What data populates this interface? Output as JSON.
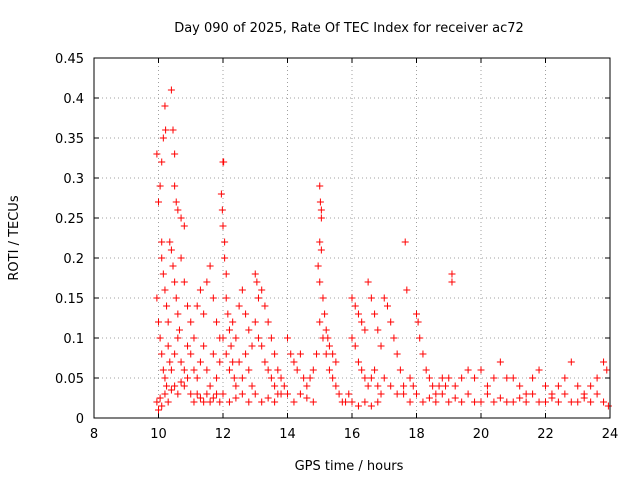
{
  "chart_data": {
    "type": "scatter",
    "title": "Day 090 of 2025, Rate Of TEC Index for receiver ac72",
    "xlabel": "GPS time / hours",
    "ylabel": "ROTI / TECUs",
    "xlim": [
      8,
      24
    ],
    "ylim": [
      0,
      0.45
    ],
    "xticks": [
      8,
      10,
      12,
      14,
      16,
      18,
      20,
      22,
      24
    ],
    "xtick_labels": [
      "8",
      "10",
      "12",
      "14",
      "16",
      "18",
      "20",
      "22",
      "24"
    ],
    "yticks": [
      0,
      0.05,
      0.1,
      0.15,
      0.2,
      0.25,
      0.3,
      0.35,
      0.4,
      0.45
    ],
    "ytick_labels": [
      "0",
      "0.05",
      "0.1",
      "0.15",
      "0.2",
      "0.25",
      "0.3",
      "0.35",
      "0.4",
      "0.45"
    ],
    "grid": true,
    "marker": "+",
    "color": "#ff0000",
    "series": [
      {
        "points": [
          [
            9.95,
            0.33
          ],
          [
            10.0,
            0.27
          ],
          [
            10.05,
            0.29
          ],
          [
            10.1,
            0.32
          ],
          [
            10.15,
            0.35
          ],
          [
            10.2,
            0.39
          ],
          [
            10.22,
            0.36
          ],
          [
            10.4,
            0.41
          ],
          [
            10.45,
            0.36
          ],
          [
            10.5,
            0.33
          ],
          [
            10.5,
            0.29
          ],
          [
            10.55,
            0.27
          ],
          [
            10.6,
            0.26
          ],
          [
            10.7,
            0.25
          ],
          [
            10.8,
            0.24
          ],
          [
            10.1,
            0.22
          ],
          [
            10.1,
            0.2
          ],
          [
            10.15,
            0.18
          ],
          [
            10.2,
            0.16
          ],
          [
            10.25,
            0.14
          ],
          [
            10.3,
            0.12
          ],
          [
            10.35,
            0.22
          ],
          [
            10.4,
            0.21
          ],
          [
            10.45,
            0.19
          ],
          [
            10.5,
            0.17
          ],
          [
            10.55,
            0.15
          ],
          [
            10.6,
            0.13
          ],
          [
            10.65,
            0.11
          ],
          [
            10.7,
            0.2
          ],
          [
            10.8,
            0.17
          ],
          [
            10.9,
            0.14
          ],
          [
            9.95,
            0.15
          ],
          [
            10.0,
            0.12
          ],
          [
            10.05,
            0.1
          ],
          [
            10.1,
            0.08
          ],
          [
            10.15,
            0.06
          ],
          [
            10.2,
            0.05
          ],
          [
            10.25,
            0.04
          ],
          [
            10.3,
            0.09
          ],
          [
            10.35,
            0.07
          ],
          [
            10.4,
            0.06
          ],
          [
            10.5,
            0.08
          ],
          [
            10.6,
            0.1
          ],
          [
            10.7,
            0.07
          ],
          [
            10.8,
            0.06
          ],
          [
            10.9,
            0.09
          ],
          [
            9.95,
            0.02
          ],
          [
            10.0,
            0.01
          ],
          [
            10.05,
            0.025
          ],
          [
            10.1,
            0.015
          ],
          [
            10.2,
            0.03
          ],
          [
            10.3,
            0.02
          ],
          [
            10.4,
            0.035
          ],
          [
            10.5,
            0.04
          ],
          [
            10.6,
            0.03
          ],
          [
            10.7,
            0.045
          ],
          [
            10.8,
            0.04
          ],
          [
            10.9,
            0.05
          ],
          [
            11.0,
            0.12
          ],
          [
            11.1,
            0.1
          ],
          [
            11.2,
            0.14
          ],
          [
            11.3,
            0.16
          ],
          [
            11.4,
            0.13
          ],
          [
            11.5,
            0.17
          ],
          [
            11.6,
            0.19
          ],
          [
            11.7,
            0.15
          ],
          [
            11.8,
            0.12
          ],
          [
            11.9,
            0.1
          ],
          [
            11.0,
            0.08
          ],
          [
            11.1,
            0.06
          ],
          [
            11.2,
            0.05
          ],
          [
            11.3,
            0.07
          ],
          [
            11.4,
            0.09
          ],
          [
            11.5,
            0.06
          ],
          [
            11.6,
            0.04
          ],
          [
            11.7,
            0.08
          ],
          [
            11.8,
            0.05
          ],
          [
            11.9,
            0.07
          ],
          [
            11.0,
            0.03
          ],
          [
            11.1,
            0.02
          ],
          [
            11.2,
            0.03
          ],
          [
            11.3,
            0.025
          ],
          [
            11.4,
            0.02
          ],
          [
            11.5,
            0.03
          ],
          [
            11.6,
            0.02
          ],
          [
            11.7,
            0.025
          ],
          [
            11.8,
            0.03
          ],
          [
            11.9,
            0.02
          ],
          [
            12.0,
            0.32
          ],
          [
            12.02,
            0.32
          ],
          [
            11.95,
            0.28
          ],
          [
            11.98,
            0.26
          ],
          [
            12.0,
            0.24
          ],
          [
            12.05,
            0.22
          ],
          [
            12.05,
            0.2
          ],
          [
            12.1,
            0.18
          ],
          [
            12.1,
            0.15
          ],
          [
            12.15,
            0.13
          ],
          [
            12.2,
            0.11
          ],
          [
            12.25,
            0.09
          ],
          [
            12.3,
            0.07
          ],
          [
            12.35,
            0.05
          ],
          [
            12.4,
            0.04
          ],
          [
            12.0,
            0.1
          ],
          [
            12.1,
            0.08
          ],
          [
            12.2,
            0.06
          ],
          [
            12.3,
            0.12
          ],
          [
            12.4,
            0.1
          ],
          [
            12.5,
            0.14
          ],
          [
            12.6,
            0.16
          ],
          [
            12.7,
            0.13
          ],
          [
            12.8,
            0.11
          ],
          [
            12.9,
            0.09
          ],
          [
            12.5,
            0.07
          ],
          [
            12.6,
            0.05
          ],
          [
            12.7,
            0.08
          ],
          [
            12.8,
            0.06
          ],
          [
            12.9,
            0.04
          ],
          [
            12.0,
            0.03
          ],
          [
            12.2,
            0.02
          ],
          [
            12.4,
            0.025
          ],
          [
            12.6,
            0.03
          ],
          [
            12.8,
            0.02
          ],
          [
            13.0,
            0.18
          ],
          [
            13.05,
            0.17
          ],
          [
            13.1,
            0.15
          ],
          [
            13.2,
            0.16
          ],
          [
            13.3,
            0.14
          ],
          [
            13.4,
            0.12
          ],
          [
            13.5,
            0.1
          ],
          [
            13.6,
            0.08
          ],
          [
            13.7,
            0.06
          ],
          [
            13.8,
            0.05
          ],
          [
            13.9,
            0.04
          ],
          [
            13.0,
            0.12
          ],
          [
            13.1,
            0.1
          ],
          [
            13.2,
            0.09
          ],
          [
            13.3,
            0.07
          ],
          [
            13.4,
            0.06
          ],
          [
            13.5,
            0.05
          ],
          [
            13.6,
            0.04
          ],
          [
            13.7,
            0.03
          ],
          [
            13.0,
            0.03
          ],
          [
            13.2,
            0.02
          ],
          [
            13.4,
            0.025
          ],
          [
            13.6,
            0.02
          ],
          [
            13.8,
            0.03
          ],
          [
            14.0,
            0.1
          ],
          [
            14.1,
            0.08
          ],
          [
            14.2,
            0.07
          ],
          [
            14.3,
            0.06
          ],
          [
            14.4,
            0.08
          ],
          [
            14.5,
            0.05
          ],
          [
            14.6,
            0.04
          ],
          [
            14.7,
            0.05
          ],
          [
            14.8,
            0.06
          ],
          [
            14.9,
            0.08
          ],
          [
            14.0,
            0.03
          ],
          [
            14.2,
            0.02
          ],
          [
            14.4,
            0.03
          ],
          [
            14.6,
            0.025
          ],
          [
            14.8,
            0.02
          ],
          [
            15.0,
            0.29
          ],
          [
            15.02,
            0.27
          ],
          [
            15.05,
            0.26
          ],
          [
            15.05,
            0.25
          ],
          [
            15.0,
            0.22
          ],
          [
            15.05,
            0.21
          ],
          [
            14.95,
            0.19
          ],
          [
            15.0,
            0.17
          ],
          [
            15.1,
            0.15
          ],
          [
            15.15,
            0.13
          ],
          [
            15.2,
            0.11
          ],
          [
            15.25,
            0.1
          ],
          [
            15.3,
            0.09
          ],
          [
            15.4,
            0.08
          ],
          [
            15.5,
            0.07
          ],
          [
            15.0,
            0.12
          ],
          [
            15.1,
            0.1
          ],
          [
            15.2,
            0.08
          ],
          [
            15.3,
            0.06
          ],
          [
            15.4,
            0.05
          ],
          [
            15.5,
            0.04
          ],
          [
            15.6,
            0.03
          ],
          [
            15.7,
            0.02
          ],
          [
            15.8,
            0.02
          ],
          [
            15.9,
            0.03
          ],
          [
            16.0,
            0.15
          ],
          [
            16.1,
            0.14
          ],
          [
            16.2,
            0.13
          ],
          [
            16.3,
            0.12
          ],
          [
            16.4,
            0.11
          ],
          [
            16.5,
            0.17
          ],
          [
            16.6,
            0.15
          ],
          [
            16.7,
            0.13
          ],
          [
            16.8,
            0.11
          ],
          [
            16.9,
            0.09
          ],
          [
            16.0,
            0.1
          ],
          [
            16.1,
            0.09
          ],
          [
            16.2,
            0.07
          ],
          [
            16.3,
            0.06
          ],
          [
            16.4,
            0.05
          ],
          [
            16.5,
            0.04
          ],
          [
            16.6,
            0.05
          ],
          [
            16.7,
            0.06
          ],
          [
            16.8,
            0.04
          ],
          [
            16.9,
            0.03
          ],
          [
            16.0,
            0.02
          ],
          [
            16.2,
            0.015
          ],
          [
            16.4,
            0.02
          ],
          [
            16.6,
            0.015
          ],
          [
            16.8,
            0.02
          ],
          [
            17.0,
            0.15
          ],
          [
            17.1,
            0.14
          ],
          [
            17.2,
            0.12
          ],
          [
            17.3,
            0.1
          ],
          [
            17.4,
            0.08
          ],
          [
            17.5,
            0.06
          ],
          [
            17.6,
            0.04
          ],
          [
            17.65,
            0.22
          ],
          [
            17.7,
            0.16
          ],
          [
            17.8,
            0.05
          ],
          [
            17.9,
            0.04
          ],
          [
            17.0,
            0.05
          ],
          [
            17.2,
            0.04
          ],
          [
            17.4,
            0.03
          ],
          [
            17.6,
            0.03
          ],
          [
            17.8,
            0.02
          ],
          [
            18.0,
            0.13
          ],
          [
            18.05,
            0.12
          ],
          [
            18.1,
            0.1
          ],
          [
            18.2,
            0.08
          ],
          [
            18.3,
            0.06
          ],
          [
            18.4,
            0.05
          ],
          [
            18.5,
            0.04
          ],
          [
            18.6,
            0.03
          ],
          [
            18.7,
            0.04
          ],
          [
            18.8,
            0.05
          ],
          [
            18.9,
            0.04
          ],
          [
            18.0,
            0.03
          ],
          [
            18.2,
            0.02
          ],
          [
            18.4,
            0.025
          ],
          [
            18.6,
            0.02
          ],
          [
            18.8,
            0.03
          ],
          [
            19.1,
            0.18
          ],
          [
            19.1,
            0.17
          ],
          [
            19.0,
            0.05
          ],
          [
            19.2,
            0.04
          ],
          [
            19.4,
            0.05
          ],
          [
            19.6,
            0.06
          ],
          [
            19.8,
            0.05
          ],
          [
            19.0,
            0.02
          ],
          [
            19.2,
            0.025
          ],
          [
            19.4,
            0.02
          ],
          [
            19.6,
            0.03
          ],
          [
            19.8,
            0.02
          ],
          [
            20.0,
            0.06
          ],
          [
            20.2,
            0.04
          ],
          [
            20.4,
            0.05
          ],
          [
            20.6,
            0.07
          ],
          [
            20.8,
            0.05
          ],
          [
            20.0,
            0.02
          ],
          [
            20.2,
            0.03
          ],
          [
            20.4,
            0.02
          ],
          [
            20.6,
            0.025
          ],
          [
            20.8,
            0.02
          ],
          [
            21.0,
            0.05
          ],
          [
            21.2,
            0.04
          ],
          [
            21.4,
            0.03
          ],
          [
            21.6,
            0.05
          ],
          [
            21.8,
            0.06
          ],
          [
            21.0,
            0.02
          ],
          [
            21.2,
            0.025
          ],
          [
            21.4,
            0.02
          ],
          [
            21.6,
            0.03
          ],
          [
            21.8,
            0.02
          ],
          [
            22.0,
            0.04
          ],
          [
            22.2,
            0.03
          ],
          [
            22.4,
            0.04
          ],
          [
            22.6,
            0.05
          ],
          [
            22.8,
            0.07
          ],
          [
            22.0,
            0.02
          ],
          [
            22.2,
            0.025
          ],
          [
            22.4,
            0.02
          ],
          [
            22.6,
            0.03
          ],
          [
            22.8,
            0.02
          ],
          [
            23.0,
            0.04
          ],
          [
            23.2,
            0.03
          ],
          [
            23.4,
            0.04
          ],
          [
            23.6,
            0.05
          ],
          [
            23.8,
            0.07
          ],
          [
            23.9,
            0.06
          ],
          [
            23.0,
            0.02
          ],
          [
            23.2,
            0.025
          ],
          [
            23.4,
            0.02
          ],
          [
            23.6,
            0.03
          ],
          [
            23.8,
            0.02
          ],
          [
            23.95,
            0.015
          ]
        ]
      }
    ]
  }
}
